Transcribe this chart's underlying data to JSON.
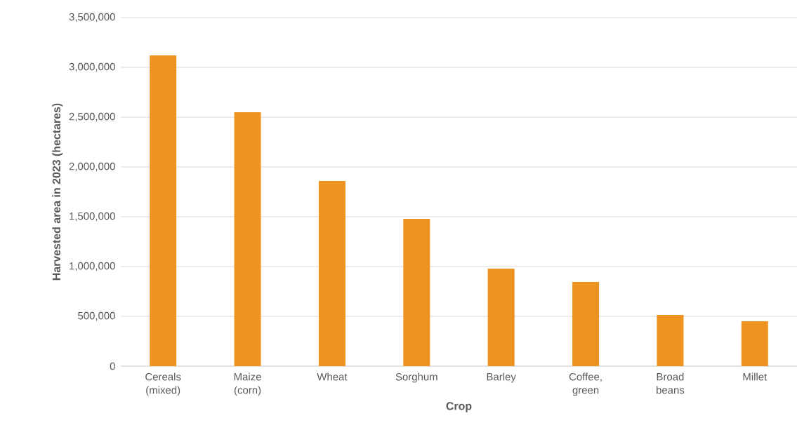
{
  "chart_data": {
    "type": "bar",
    "xlabel": "Crop",
    "ylabel": "Harvested area in 2023 (hectares)",
    "categories": [
      "Cereals (mixed)",
      "Maize (corn)",
      "Wheat",
      "Sorghum",
      "Barley",
      "Coffee, green",
      "Broad beans",
      "Millet"
    ],
    "values": [
      3120000,
      2549000,
      1859000,
      1479000,
      979000,
      845000,
      514000,
      451000
    ],
    "color": "#ed9420",
    "ylim": [
      0,
      3500000
    ],
    "yticks": [
      {
        "value": 0,
        "label": "0"
      },
      {
        "value": 500000,
        "label": "500,000"
      },
      {
        "value": 1000000,
        "label": "1,000,000"
      },
      {
        "value": 1500000,
        "label": "1,500,000"
      },
      {
        "value": 2000000,
        "label": "2,000,000"
      },
      {
        "value": 2500000,
        "label": "2,500,000"
      },
      {
        "value": 3000000,
        "label": "3,000,000"
      },
      {
        "value": 3500000,
        "label": "3,500,000"
      }
    ],
    "grid": "y"
  }
}
